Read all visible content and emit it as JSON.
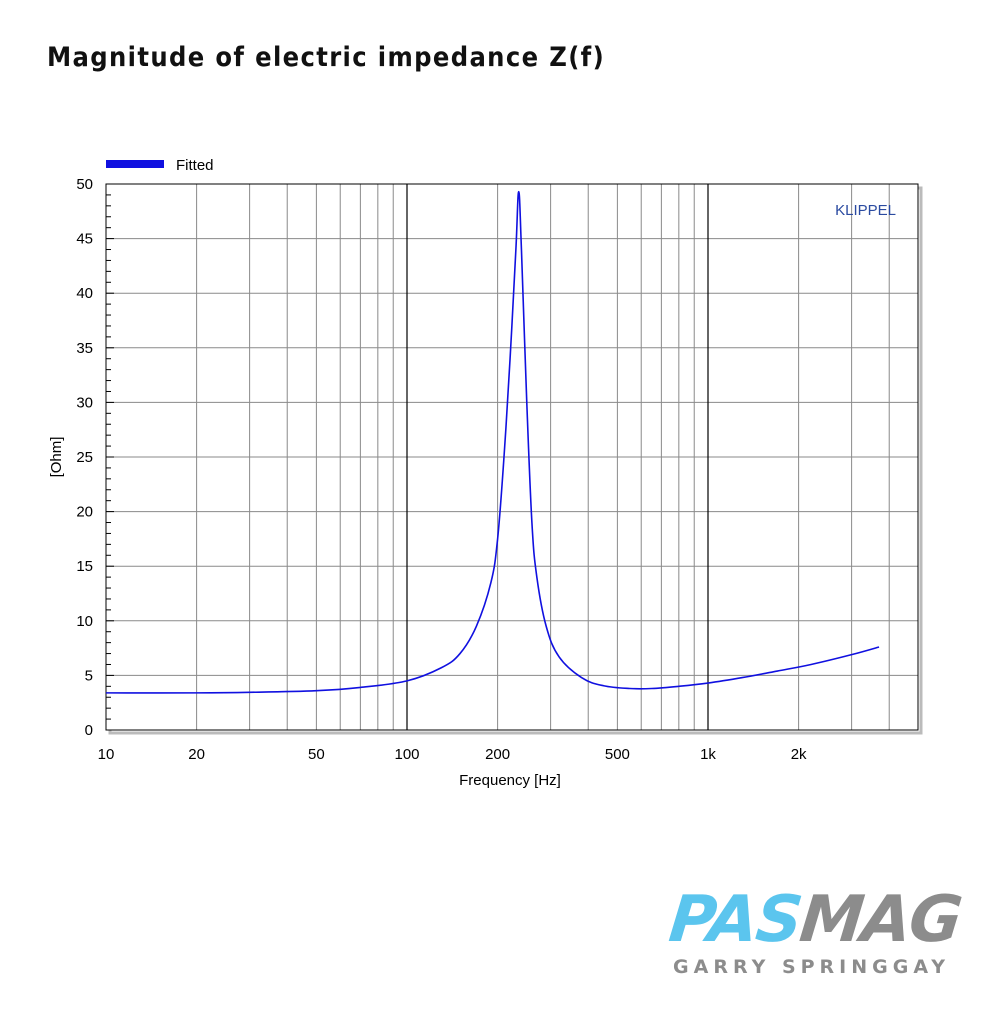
{
  "page": {
    "title": "Magnitude of electric impedance Z(f)"
  },
  "logo": {
    "part1": "PAS",
    "part2": "MAG",
    "byline": "GARRY SPRINGGAY",
    "color_part1": "#5bc5ee",
    "color_part2": "#8c8c8c",
    "color_byline": "#8c8c8c"
  },
  "chart_data": {
    "type": "line",
    "title": "",
    "xlabel": "Frequency [Hz]",
    "ylabel": "[Ohm]",
    "xscale": "log",
    "xlim": [
      10,
      4000
    ],
    "ylim": [
      0,
      50
    ],
    "grid": true,
    "legend_position": "top-left",
    "watermark": "KLIPPEL",
    "x_ticks": [
      {
        "value": 10,
        "label": "10"
      },
      {
        "value": 20,
        "label": "20"
      },
      {
        "value": 50,
        "label": "50"
      },
      {
        "value": 100,
        "label": "100"
      },
      {
        "value": 200,
        "label": "200"
      },
      {
        "value": 500,
        "label": "500"
      },
      {
        "value": 1000,
        "label": "1k"
      },
      {
        "value": 2000,
        "label": "2k"
      }
    ],
    "y_ticks": [
      {
        "value": 0,
        "label": "0"
      },
      {
        "value": 5,
        "label": "5"
      },
      {
        "value": 10,
        "label": "10"
      },
      {
        "value": 15,
        "label": "15"
      },
      {
        "value": 20,
        "label": "20"
      },
      {
        "value": 25,
        "label": "25"
      },
      {
        "value": 30,
        "label": "30"
      },
      {
        "value": 35,
        "label": "35"
      },
      {
        "value": 40,
        "label": "40"
      },
      {
        "value": 45,
        "label": "45"
      },
      {
        "value": 50,
        "label": "50"
      }
    ],
    "series": [
      {
        "name": "Fitted",
        "color": "#1010e0",
        "x": [
          10,
          20,
          30,
          50,
          70,
          100,
          130,
          150,
          170,
          190,
          200,
          210,
          220,
          230,
          235,
          240,
          250,
          260,
          270,
          290,
          320,
          380,
          450,
          550,
          650,
          800,
          1000,
          1300,
          1700,
          2200,
          3000,
          3700
        ],
        "y": [
          3.4,
          3.4,
          3.45,
          3.6,
          3.9,
          4.5,
          5.7,
          7.0,
          9.5,
          13.5,
          17.5,
          25.0,
          34.0,
          44.0,
          49.3,
          44.0,
          30.0,
          19.0,
          14.0,
          9.5,
          6.7,
          4.8,
          4.05,
          3.8,
          3.8,
          4.0,
          4.3,
          4.8,
          5.4,
          6.0,
          6.9,
          7.6
        ]
      }
    ]
  }
}
